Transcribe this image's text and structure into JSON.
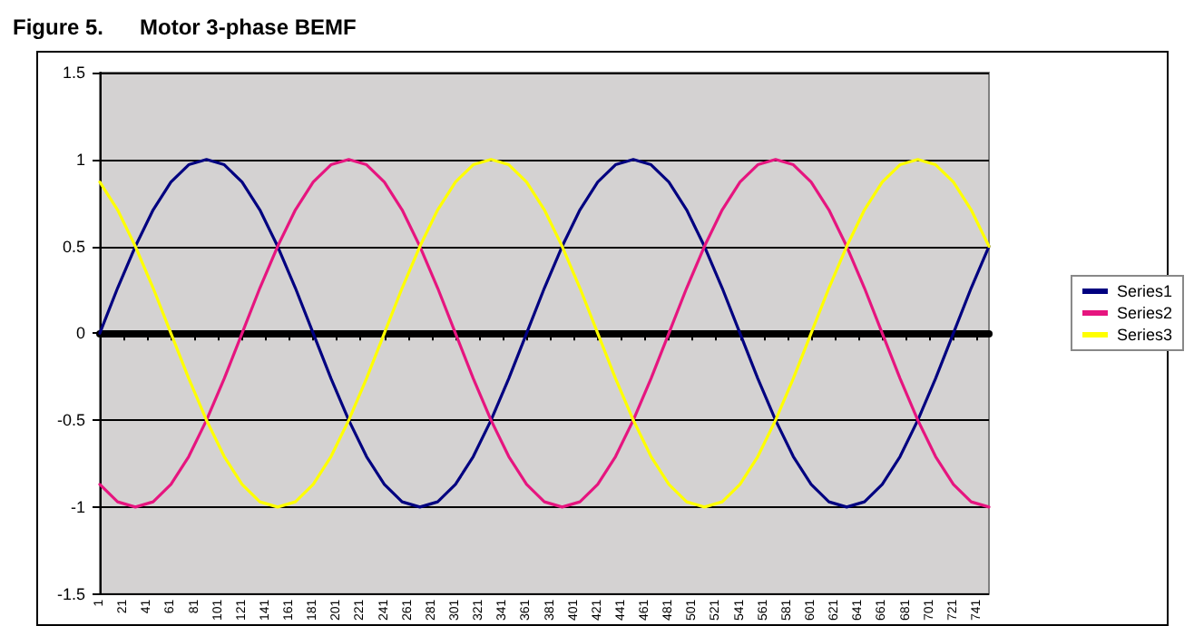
{
  "chart_data": {
    "type": "line",
    "title": "Figure 5.      Motor 3-phase BEMF",
    "x": [
      1,
      16,
      31,
      46,
      61,
      76,
      91,
      106,
      121,
      136,
      151,
      166,
      181,
      196,
      211,
      226,
      241,
      256,
      271,
      286,
      301,
      316,
      331,
      346,
      361,
      376,
      391,
      406,
      421,
      436,
      451,
      466,
      481,
      496,
      511,
      526,
      541,
      556,
      571,
      586,
      601,
      616,
      631,
      646,
      661,
      676,
      691,
      706,
      721,
      736,
      751
    ],
    "series": [
      {
        "name": "Series1",
        "color": "#000080",
        "values": [
          0,
          0.26,
          0.5,
          0.71,
          0.87,
          0.97,
          1,
          0.97,
          0.87,
          0.71,
          0.5,
          0.26,
          0,
          -0.26,
          -0.5,
          -0.71,
          -0.87,
          -0.97,
          -1,
          -0.97,
          -0.87,
          -0.71,
          -0.5,
          -0.26,
          0,
          0.26,
          0.5,
          0.71,
          0.87,
          0.97,
          1,
          0.97,
          0.87,
          0.71,
          0.5,
          0.26,
          0,
          -0.26,
          -0.5,
          -0.71,
          -0.87,
          -0.97,
          -1,
          -0.97,
          -0.87,
          -0.71,
          -0.5,
          -0.26,
          0,
          0.26,
          0.5
        ]
      },
      {
        "name": "Series2",
        "color": "#e6157f",
        "values": [
          -0.87,
          -0.97,
          -1,
          -0.97,
          -0.87,
          -0.71,
          -0.5,
          -0.26,
          0,
          0.26,
          0.5,
          0.71,
          0.87,
          0.97,
          1,
          0.97,
          0.87,
          0.71,
          0.5,
          0.26,
          0,
          -0.26,
          -0.5,
          -0.71,
          -0.87,
          -0.97,
          -1,
          -0.97,
          -0.87,
          -0.71,
          -0.5,
          -0.26,
          0,
          0.26,
          0.5,
          0.71,
          0.87,
          0.97,
          1,
          0.97,
          0.87,
          0.71,
          0.5,
          0.26,
          0,
          -0.26,
          -0.5,
          -0.71,
          -0.87,
          -0.97,
          -1
        ]
      },
      {
        "name": "Series3",
        "color": "#ffff00",
        "values": [
          0.87,
          0.71,
          0.5,
          0.26,
          0,
          -0.26,
          -0.5,
          -0.71,
          -0.87,
          -0.97,
          -1,
          -0.97,
          -0.87,
          -0.71,
          -0.5,
          -0.26,
          0,
          0.26,
          0.5,
          0.71,
          0.87,
          0.97,
          1,
          0.97,
          0.87,
          0.71,
          0.5,
          0.26,
          0,
          -0.26,
          -0.5,
          -0.71,
          -0.87,
          -0.97,
          -1,
          -0.97,
          -0.87,
          -0.71,
          -0.5,
          -0.26,
          0,
          0.26,
          0.5,
          0.71,
          0.87,
          0.97,
          1,
          0.97,
          0.87,
          0.71,
          0.5
        ]
      }
    ],
    "xlim": [
      1,
      751
    ],
    "xticks": [
      1,
      21,
      41,
      61,
      81,
      101,
      121,
      141,
      161,
      181,
      201,
      221,
      241,
      261,
      281,
      301,
      321,
      341,
      361,
      381,
      401,
      421,
      441,
      461,
      481,
      501,
      521,
      541,
      561,
      581,
      601,
      621,
      641,
      661,
      681,
      701,
      721,
      741
    ],
    "ylim": [
      -1.5,
      1.5
    ],
    "yticks": [
      -1.5,
      -1,
      -0.5,
      0,
      0.5,
      1,
      1.5
    ],
    "grid": "y",
    "legend": "right",
    "marker": "none"
  }
}
